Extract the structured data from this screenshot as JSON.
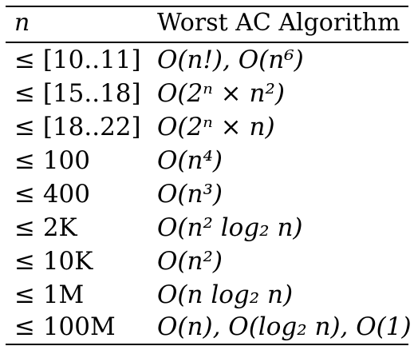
{
  "table": {
    "header": {
      "n": "n",
      "algo": "Worst AC Algorithm"
    },
    "rows": [
      {
        "n": "≤ [10..11]",
        "algo": "O(n!), O(n⁶)"
      },
      {
        "n": "≤ [15..18]",
        "algo": "O(2ⁿ × n²)"
      },
      {
        "n": "≤ [18..22]",
        "algo": "O(2ⁿ × n)"
      },
      {
        "n": "≤ 100",
        "algo": "O(n⁴)"
      },
      {
        "n": "≤ 400",
        "algo": "O(n³)"
      },
      {
        "n": "≤ 2K",
        "algo": "O(n² log₂ n)"
      },
      {
        "n": "≤ 10K",
        "algo": "O(n²)"
      },
      {
        "n": "≤ 1M",
        "algo": "O(n log₂ n)"
      },
      {
        "n": "≤ 100M",
        "algo": "O(n), O(log₂ n), O(1)"
      }
    ]
  }
}
